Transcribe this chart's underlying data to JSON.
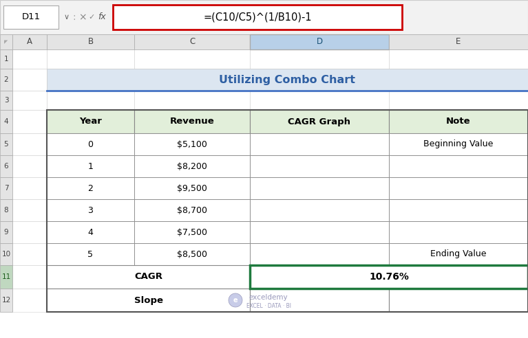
{
  "fig_width": 7.67,
  "fig_height": 4.92,
  "dpi": 100,
  "bg_color": "#ffffff",
  "formula_bar": {
    "cell_ref": "D11",
    "formula": "=(C10/C5)^(1/B10)-1"
  },
  "title_text": "Utilizing Combo Chart",
  "title_bg": "#dce6f1",
  "title_text_color": "#2e5fa3",
  "title_underline_color": "#4472c4",
  "header_bg": "#e2efda",
  "headers": [
    "Year",
    "Revenue",
    "CAGR Graph",
    "Note"
  ],
  "rows": [
    [
      "0",
      "$5,100",
      "",
      "Beginning Value"
    ],
    [
      "1",
      "$8,200",
      "",
      ""
    ],
    [
      "2",
      "$9,500",
      "",
      ""
    ],
    [
      "3",
      "$8,700",
      "",
      ""
    ],
    [
      "4",
      "$7,500",
      "",
      ""
    ],
    [
      "5",
      "$8,500",
      "",
      "Ending Value"
    ]
  ],
  "cagr_border_color": "#1f7a3e",
  "formula_box_border": "#cc0000",
  "selected_col_header_bg": "#b8d0e8",
  "selected_col_header_color": "#1a5276",
  "selected_row_header_bg": "#c0d8c0",
  "selected_row_header_color": "#1a5c1a",
  "col_header_bg": "#e8e8e8",
  "row_header_bg": "#e8e8e8",
  "toolbar_bg": "#f2f2f2",
  "cell_border_color": "#d0d0d0",
  "table_border_color": "#888888",
  "outer_table_border": "#555555",
  "watermark_color": "#9999bb"
}
